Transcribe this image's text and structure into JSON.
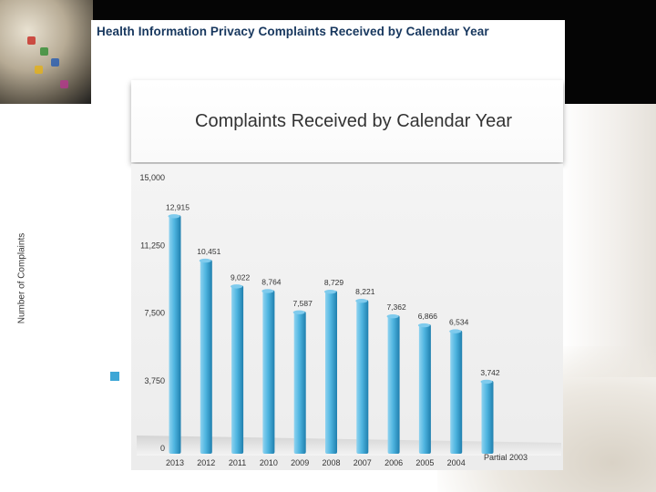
{
  "slide": {
    "title": "Health Information Privacy Complaints Received by Calendar Year"
  },
  "chart_data": {
    "type": "bar",
    "title": "Complaints Received by Calendar Year",
    "xlabel": "",
    "ylabel": "Number of Complaints",
    "ylim": [
      0,
      15000
    ],
    "yticks": [
      "0",
      "3,750",
      "7,500",
      "11,250",
      "15,000"
    ],
    "ytick_values": [
      0,
      3750,
      7500,
      11250,
      15000
    ],
    "categories": [
      "2013",
      "2012",
      "2011",
      "2010",
      "2009",
      "2008",
      "2007",
      "2006",
      "2005",
      "2004",
      "Partial 2003"
    ],
    "values": [
      12915,
      10451,
      9022,
      8764,
      7587,
      8729,
      8221,
      7362,
      6866,
      6534,
      3742
    ],
    "value_labels": [
      "12,915",
      "10,451",
      "9,022",
      "8,764",
      "7,587",
      "8,729",
      "8,221",
      "7,362",
      "6,866",
      "6,534",
      "3,742"
    ],
    "grid": false,
    "colors": {
      "bar": "#3da6d6",
      "bar_light": "#8fd3f0",
      "bar_dark": "#1f7fae"
    }
  }
}
